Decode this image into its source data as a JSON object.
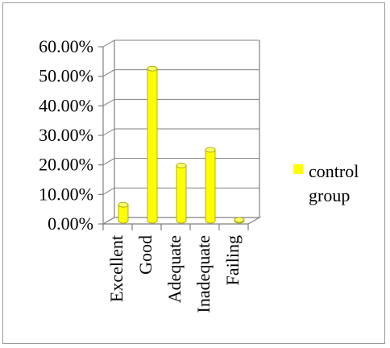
{
  "chart_data": {
    "type": "bar",
    "categories": [
      "Excellent",
      "Good",
      "Adequate",
      "Inadequate",
      "Failing"
    ],
    "series": [
      {
        "name": "control group",
        "values": [
          5.4,
          51.5,
          18.7,
          24.0,
          0.3
        ]
      }
    ],
    "y_tick_labels": [
      "0.00%",
      "10.00%",
      "20.00%",
      "30.00%",
      "40.00%",
      "50.00%",
      "60.00%"
    ],
    "ylim": [
      0,
      60
    ],
    "grid": true,
    "legend_position": "right",
    "bar_color": "#ffff00",
    "bar_edge_color": "#a0a000",
    "title": "",
    "xlabel": "",
    "ylabel": ""
  },
  "legend": {
    "line1": "control",
    "line2": "group"
  }
}
